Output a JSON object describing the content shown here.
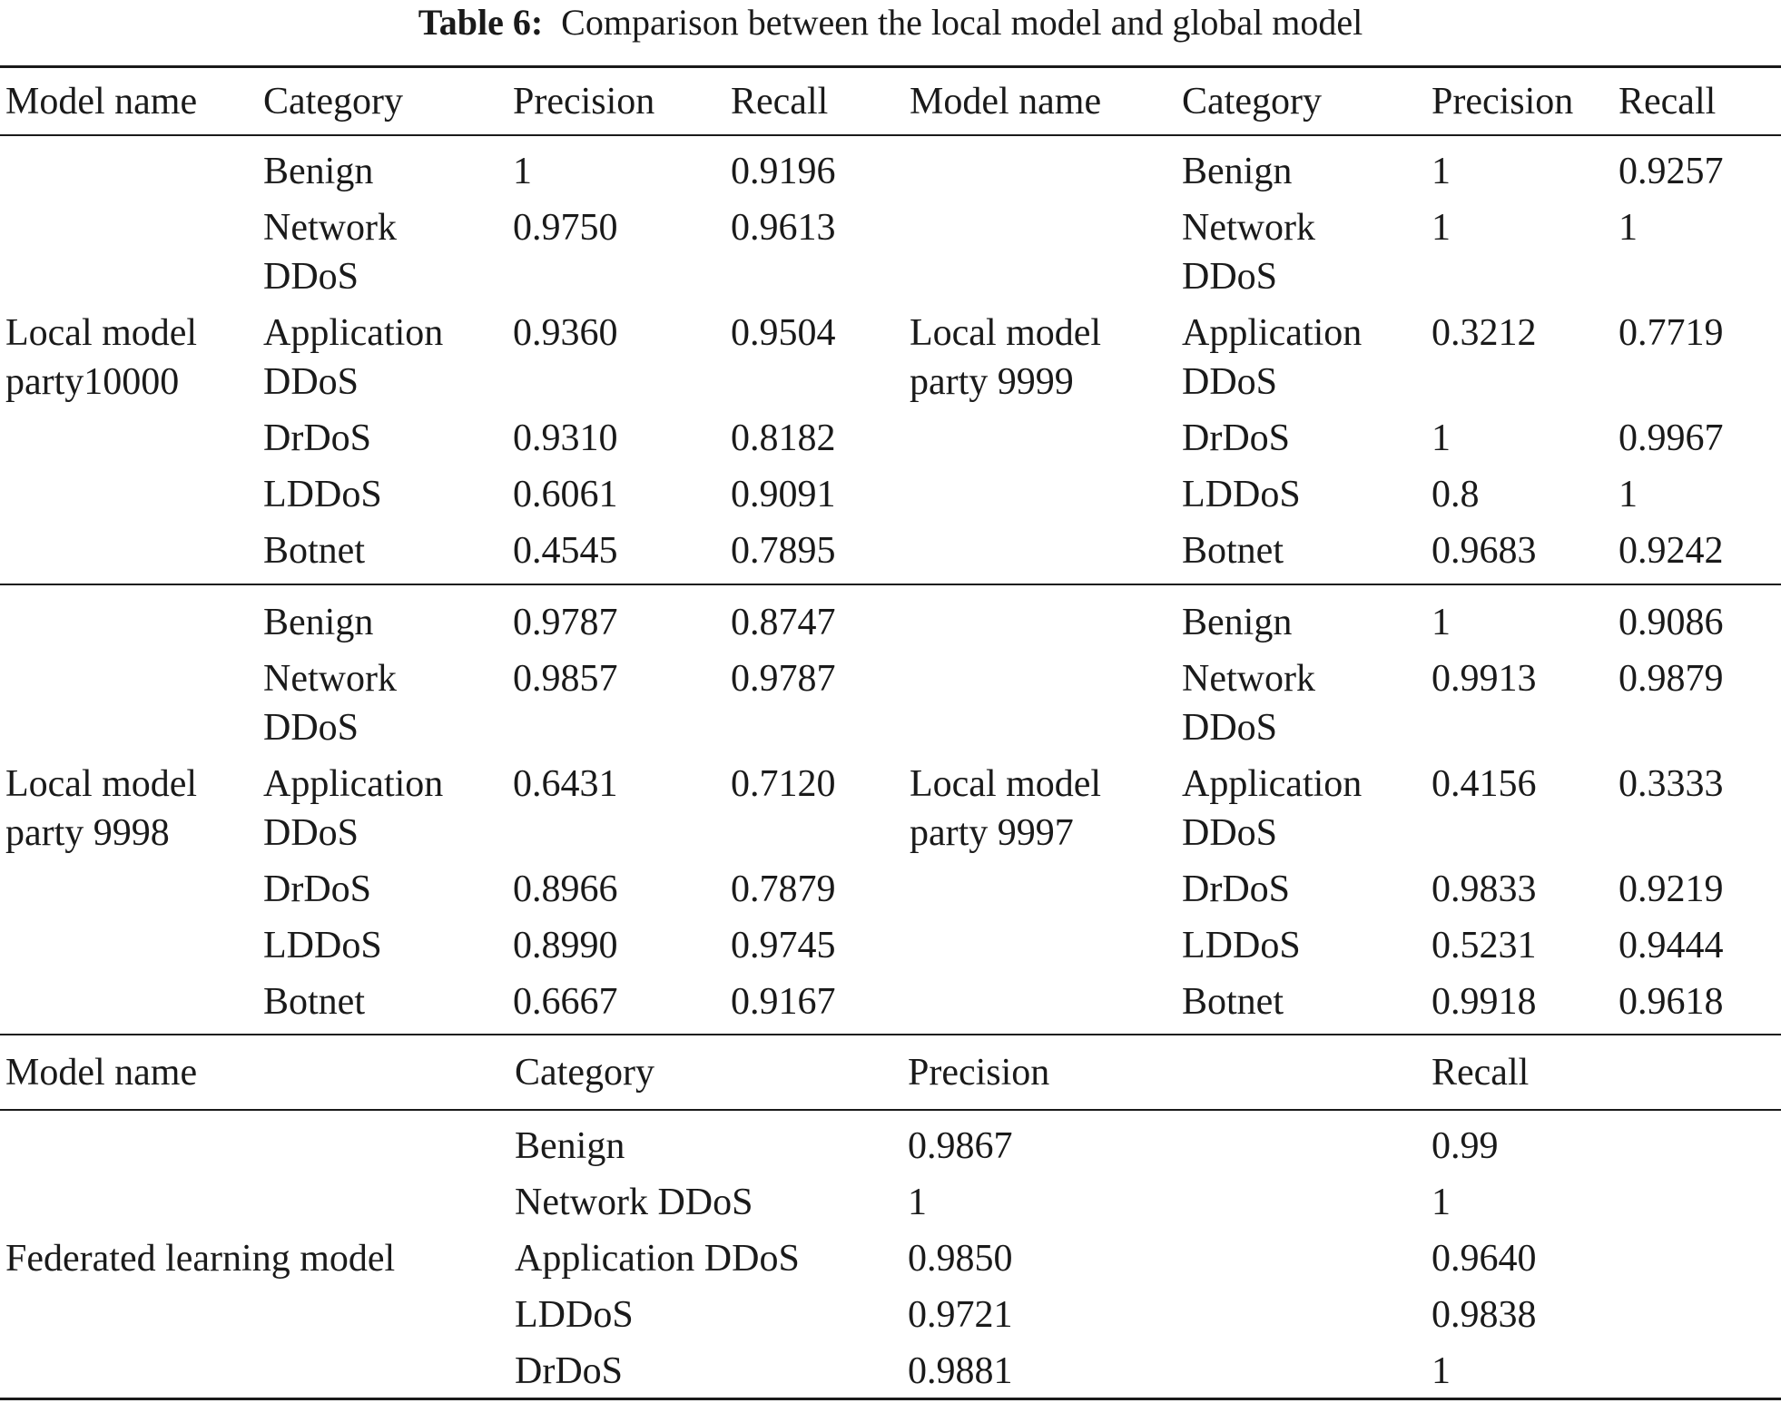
{
  "caption": {
    "label": "Table 6:",
    "text": "Comparison between the local model and global model"
  },
  "header": [
    "Model name",
    "Category",
    "Precision",
    "Recall",
    "Model name",
    "Category",
    "Precision",
    "Recall"
  ],
  "local_blocks": [
    {
      "left_model": [
        "Local model",
        "party10000"
      ],
      "right_model": [
        "Local model",
        "party 9999"
      ],
      "rows": [
        {
          "lcat": [
            "Benign"
          ],
          "lp": "1",
          "lr": "0.9196",
          "rcat": [
            "Benign"
          ],
          "rp": "1",
          "rr": "0.9257"
        },
        {
          "lcat": [
            "Network",
            "DDoS"
          ],
          "lp": "0.9750",
          "lr": "0.9613",
          "rcat": [
            "Network",
            "DDoS"
          ],
          "rp": "1",
          "rr": "1"
        },
        {
          "lcat": [
            "Application",
            "DDoS"
          ],
          "lp": "0.9360",
          "lr": "0.9504",
          "rcat": [
            "Application",
            "DDoS"
          ],
          "rp": "0.3212",
          "rr": "0.7719"
        },
        {
          "lcat": [
            "DrDoS"
          ],
          "lp": "0.9310",
          "lr": "0.8182",
          "rcat": [
            "DrDoS"
          ],
          "rp": "1",
          "rr": "0.9967"
        },
        {
          "lcat": [
            "LDDoS"
          ],
          "lp": "0.6061",
          "lr": "0.9091",
          "rcat": [
            "LDDoS"
          ],
          "rp": "0.8",
          "rr": "1"
        },
        {
          "lcat": [
            "Botnet"
          ],
          "lp": "0.4545",
          "lr": "0.7895",
          "rcat": [
            "Botnet"
          ],
          "rp": "0.9683",
          "rr": "0.9242"
        }
      ]
    },
    {
      "left_model": [
        "Local model",
        "party 9998"
      ],
      "right_model": [
        "Local model",
        "party 9997"
      ],
      "rows": [
        {
          "lcat": [
            "Benign"
          ],
          "lp": "0.9787",
          "lr": "0.8747",
          "rcat": [
            "Benign"
          ],
          "rp": "1",
          "rr": "0.9086"
        },
        {
          "lcat": [
            "Network",
            "DDoS"
          ],
          "lp": "0.9857",
          "lr": "0.9787",
          "rcat": [
            "Network",
            "DDoS"
          ],
          "rp": "0.9913",
          "rr": "0.9879"
        },
        {
          "lcat": [
            "Application",
            "DDoS"
          ],
          "lp": "0.6431",
          "lr": "0.7120",
          "rcat": [
            "Application",
            "DDoS"
          ],
          "rp": "0.4156",
          "rr": "0.3333"
        },
        {
          "lcat": [
            "DrDoS"
          ],
          "lp": "0.8966",
          "lr": "0.7879",
          "rcat": [
            "DrDoS"
          ],
          "rp": "0.9833",
          "rr": "0.9219"
        },
        {
          "lcat": [
            "LDDoS"
          ],
          "lp": "0.8990",
          "lr": "0.9745",
          "rcat": [
            "LDDoS"
          ],
          "rp": "0.5231",
          "rr": "0.9444"
        },
        {
          "lcat": [
            "Botnet"
          ],
          "lp": "0.6667",
          "lr": "0.9167",
          "rcat": [
            "Botnet"
          ],
          "rp": "0.9918",
          "rr": "0.9618"
        }
      ]
    }
  ],
  "global_header": [
    "Model name",
    "Category",
    "Precision",
    "Recall"
  ],
  "global": {
    "model": "Federated learning model",
    "rows": [
      {
        "cat": "Benign",
        "p": "0.9867",
        "r": "0.99"
      },
      {
        "cat": "Network DDoS",
        "p": "1",
        "r": "1"
      },
      {
        "cat": "Application DDoS",
        "p": "0.9850",
        "r": "0.9640"
      },
      {
        "cat": "LDDoS",
        "p": "0.9721",
        "r": "0.9838"
      },
      {
        "cat": "DrDoS",
        "p": "0.9881",
        "r": "1"
      }
    ]
  }
}
